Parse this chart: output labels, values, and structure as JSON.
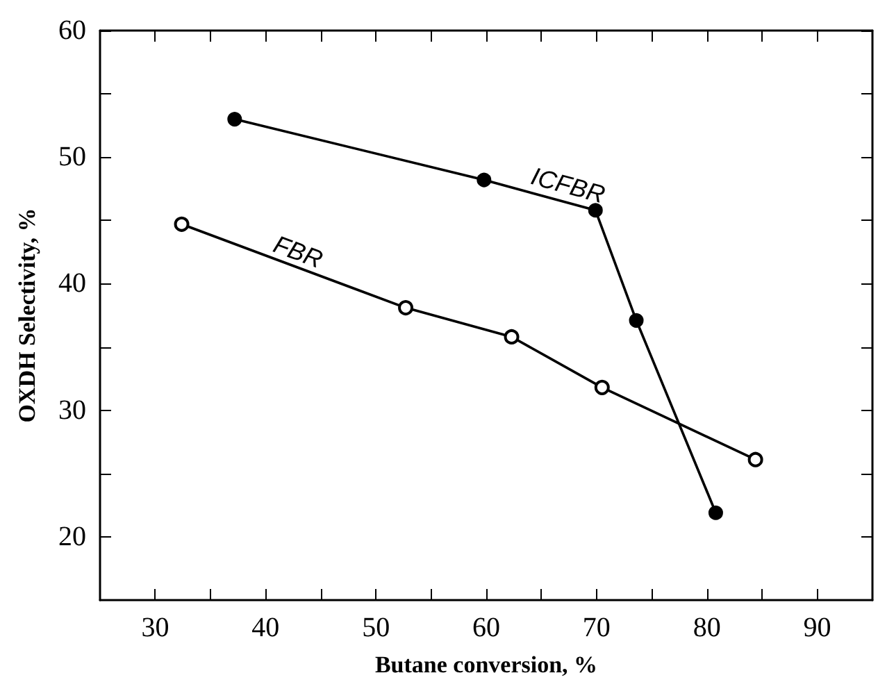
{
  "chart_data": {
    "type": "line",
    "xlabel": "Butane conversion, %",
    "ylabel": "OXDH Selectivity, %",
    "xlim": [
      25,
      95
    ],
    "xticks": [
      30,
      40,
      50,
      60,
      70,
      80,
      90
    ],
    "ylim": [
      15,
      60
    ],
    "yticks": [
      20,
      30,
      40,
      50,
      60
    ],
    "grid": false,
    "legend": false,
    "marker": "circle",
    "line_style": "solid",
    "series": [
      {
        "name": "ICFBR",
        "color": "#000000",
        "x": [
          37.2,
          59.8,
          69.9,
          73.6,
          80.8
        ],
        "values": [
          53,
          48.2,
          45.8,
          37.1,
          21.9
        ]
      },
      {
        "name": "FBR",
        "color": "#000000",
        "x": [
          32.4,
          52.7,
          62.3,
          70.5,
          84.4
        ],
        "values": [
          44.7,
          38.1,
          35.8,
          31.8,
          26.1
        ]
      }
    ]
  }
}
